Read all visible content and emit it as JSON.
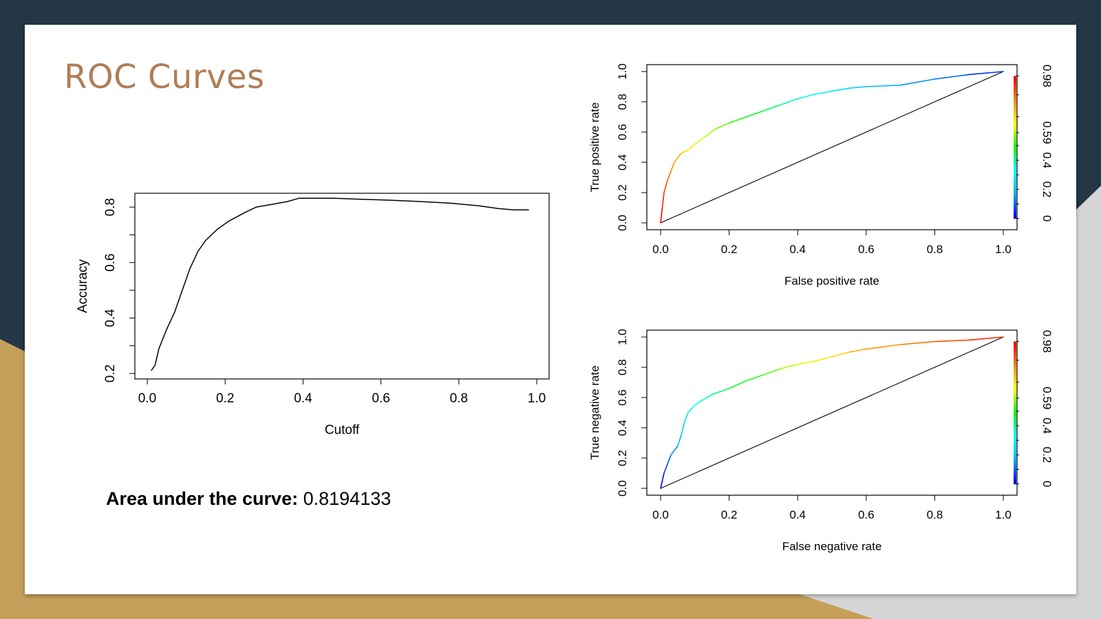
{
  "slide": {
    "title": "ROC Curves"
  },
  "auc": {
    "label": "Area under the curve:",
    "value": "0.8194133"
  },
  "colorbar": {
    "colors": [
      "#0000ff",
      "#00b4ff",
      "#00ffff",
      "#00ff00",
      "#ffff00",
      "#ff8c00",
      "#ff0000"
    ]
  },
  "chart_data": [
    {
      "type": "line",
      "xlabel": "Cutoff",
      "ylabel": "Accuracy",
      "xlim": [
        0,
        1
      ],
      "ylim": [
        0.2,
        0.83
      ],
      "xticks": [
        "0.0",
        "0.2",
        "0.4",
        "0.6",
        "0.8",
        "1.0"
      ],
      "yticks": [
        "0.2",
        "0.4",
        "0.6",
        "0.8"
      ],
      "series": [
        {
          "x": [
            0.01,
            0.02,
            0.03,
            0.05,
            0.07,
            0.09,
            0.11,
            0.13,
            0.15,
            0.18,
            0.21,
            0.25,
            0.28,
            0.32,
            0.36,
            0.39,
            0.43,
            0.48,
            0.55,
            0.62,
            0.7,
            0.78,
            0.85,
            0.9,
            0.94,
            0.98
          ],
          "y": [
            0.21,
            0.23,
            0.29,
            0.36,
            0.42,
            0.5,
            0.58,
            0.64,
            0.68,
            0.72,
            0.75,
            0.78,
            0.8,
            0.81,
            0.82,
            0.832,
            0.832,
            0.832,
            0.828,
            0.825,
            0.82,
            0.814,
            0.805,
            0.795,
            0.79,
            0.79
          ]
        }
      ]
    },
    {
      "type": "line",
      "xlabel": "False positive rate",
      "ylabel": "True positive rate",
      "xlim": [
        0,
        1
      ],
      "ylim": [
        0,
        1
      ],
      "xticks": [
        "0.0",
        "0.2",
        "0.4",
        "0.6",
        "0.8",
        "1.0"
      ],
      "yticks": [
        "0.0",
        "0.2",
        "0.4",
        "0.6",
        "0.8",
        "1.0"
      ],
      "colorbar_ticks": [
        "0",
        "0.2",
        "0.4",
        "0.59",
        "0.98"
      ],
      "colorbar_values": [
        0,
        0.2,
        0.4,
        0.59,
        0.98
      ],
      "series": [
        {
          "x": [
            0,
            0.005,
            0.01,
            0.02,
            0.03,
            0.04,
            0.06,
            0.08,
            0.1,
            0.13,
            0.16,
            0.2,
            0.25,
            0.3,
            0.35,
            0.4,
            0.45,
            0.5,
            0.55,
            0.6,
            0.7,
            0.8,
            0.9,
            1
          ],
          "y": [
            0,
            0.1,
            0.2,
            0.28,
            0.34,
            0.4,
            0.46,
            0.48,
            0.52,
            0.57,
            0.62,
            0.66,
            0.7,
            0.74,
            0.78,
            0.82,
            0.85,
            0.87,
            0.89,
            0.9,
            0.91,
            0.95,
            0.98,
            1
          ]
        }
      ]
    },
    {
      "type": "line",
      "xlabel": "False negative rate",
      "ylabel": "True negative rate",
      "xlim": [
        0,
        1
      ],
      "ylim": [
        0,
        1
      ],
      "xticks": [
        "0.0",
        "0.2",
        "0.4",
        "0.6",
        "0.8",
        "1.0"
      ],
      "yticks": [
        "0.0",
        "0.2",
        "0.4",
        "0.6",
        "0.8",
        "1.0"
      ],
      "colorbar_ticks": [
        "0",
        "0.2",
        "0.4",
        "0.59",
        "0.98"
      ],
      "colorbar_values": [
        0,
        0.2,
        0.4,
        0.59,
        0.98
      ],
      "series": [
        {
          "x": [
            0,
            0.01,
            0.02,
            0.03,
            0.05,
            0.06,
            0.07,
            0.08,
            0.1,
            0.12,
            0.15,
            0.2,
            0.25,
            0.3,
            0.35,
            0.4,
            0.45,
            0.5,
            0.55,
            0.6,
            0.7,
            0.8,
            0.9,
            1
          ],
          "y": [
            0,
            0.1,
            0.16,
            0.22,
            0.28,
            0.35,
            0.44,
            0.5,
            0.55,
            0.58,
            0.62,
            0.66,
            0.71,
            0.75,
            0.79,
            0.82,
            0.84,
            0.87,
            0.9,
            0.92,
            0.95,
            0.97,
            0.98,
            1
          ]
        }
      ]
    }
  ]
}
